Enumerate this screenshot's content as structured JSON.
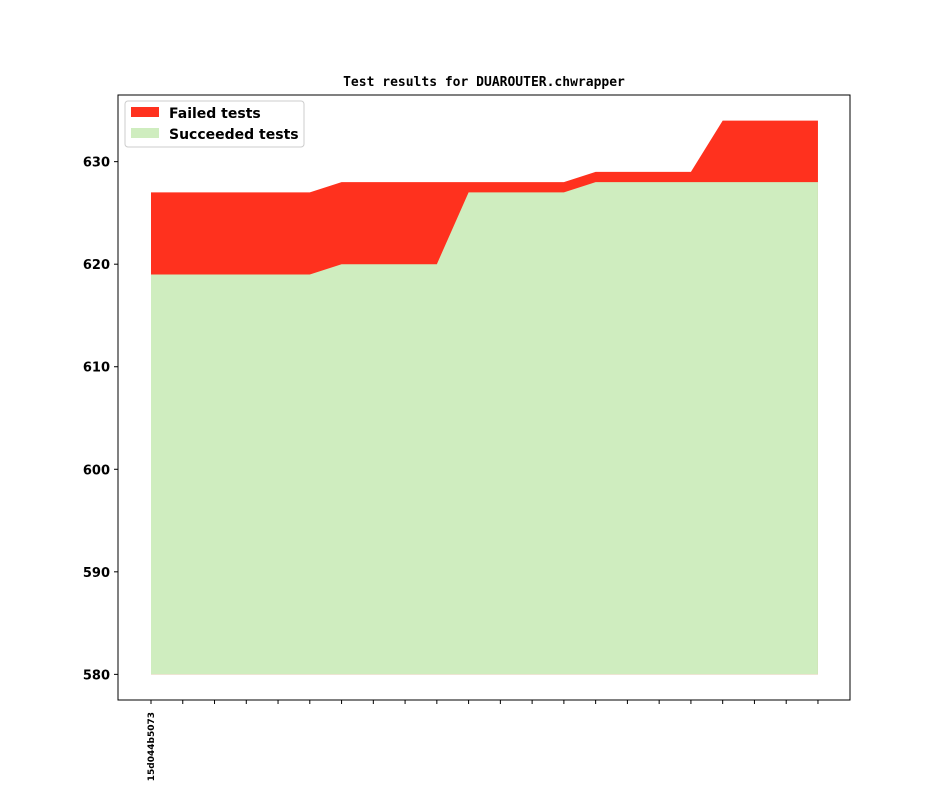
{
  "chart_data": {
    "type": "area",
    "title": "Test results for DUAROUTER.chwrapper",
    "xlabel": "",
    "ylabel": "",
    "x_tick_labels": [
      "15d044b5073"
    ],
    "n_points": 22,
    "ylim": [
      577.5,
      636.5
    ],
    "yticks": [
      580,
      590,
      600,
      610,
      620,
      630
    ],
    "baseline": 580,
    "legend_position": "top-left",
    "series": [
      {
        "name": "Failed tests",
        "color": "#ff311e",
        "values": [
          627,
          627,
          627,
          627,
          627,
          627,
          628,
          628,
          628,
          628,
          628,
          628,
          628,
          628,
          629,
          629,
          629,
          629,
          634,
          634,
          634,
          634
        ]
      },
      {
        "name": "Succeeded tests",
        "color": "#cfedbf",
        "values": [
          619,
          619,
          619,
          619,
          619,
          619,
          620,
          620,
          620,
          620,
          627,
          627,
          627,
          627,
          628,
          628,
          628,
          628,
          628,
          628,
          628,
          628
        ]
      }
    ]
  }
}
